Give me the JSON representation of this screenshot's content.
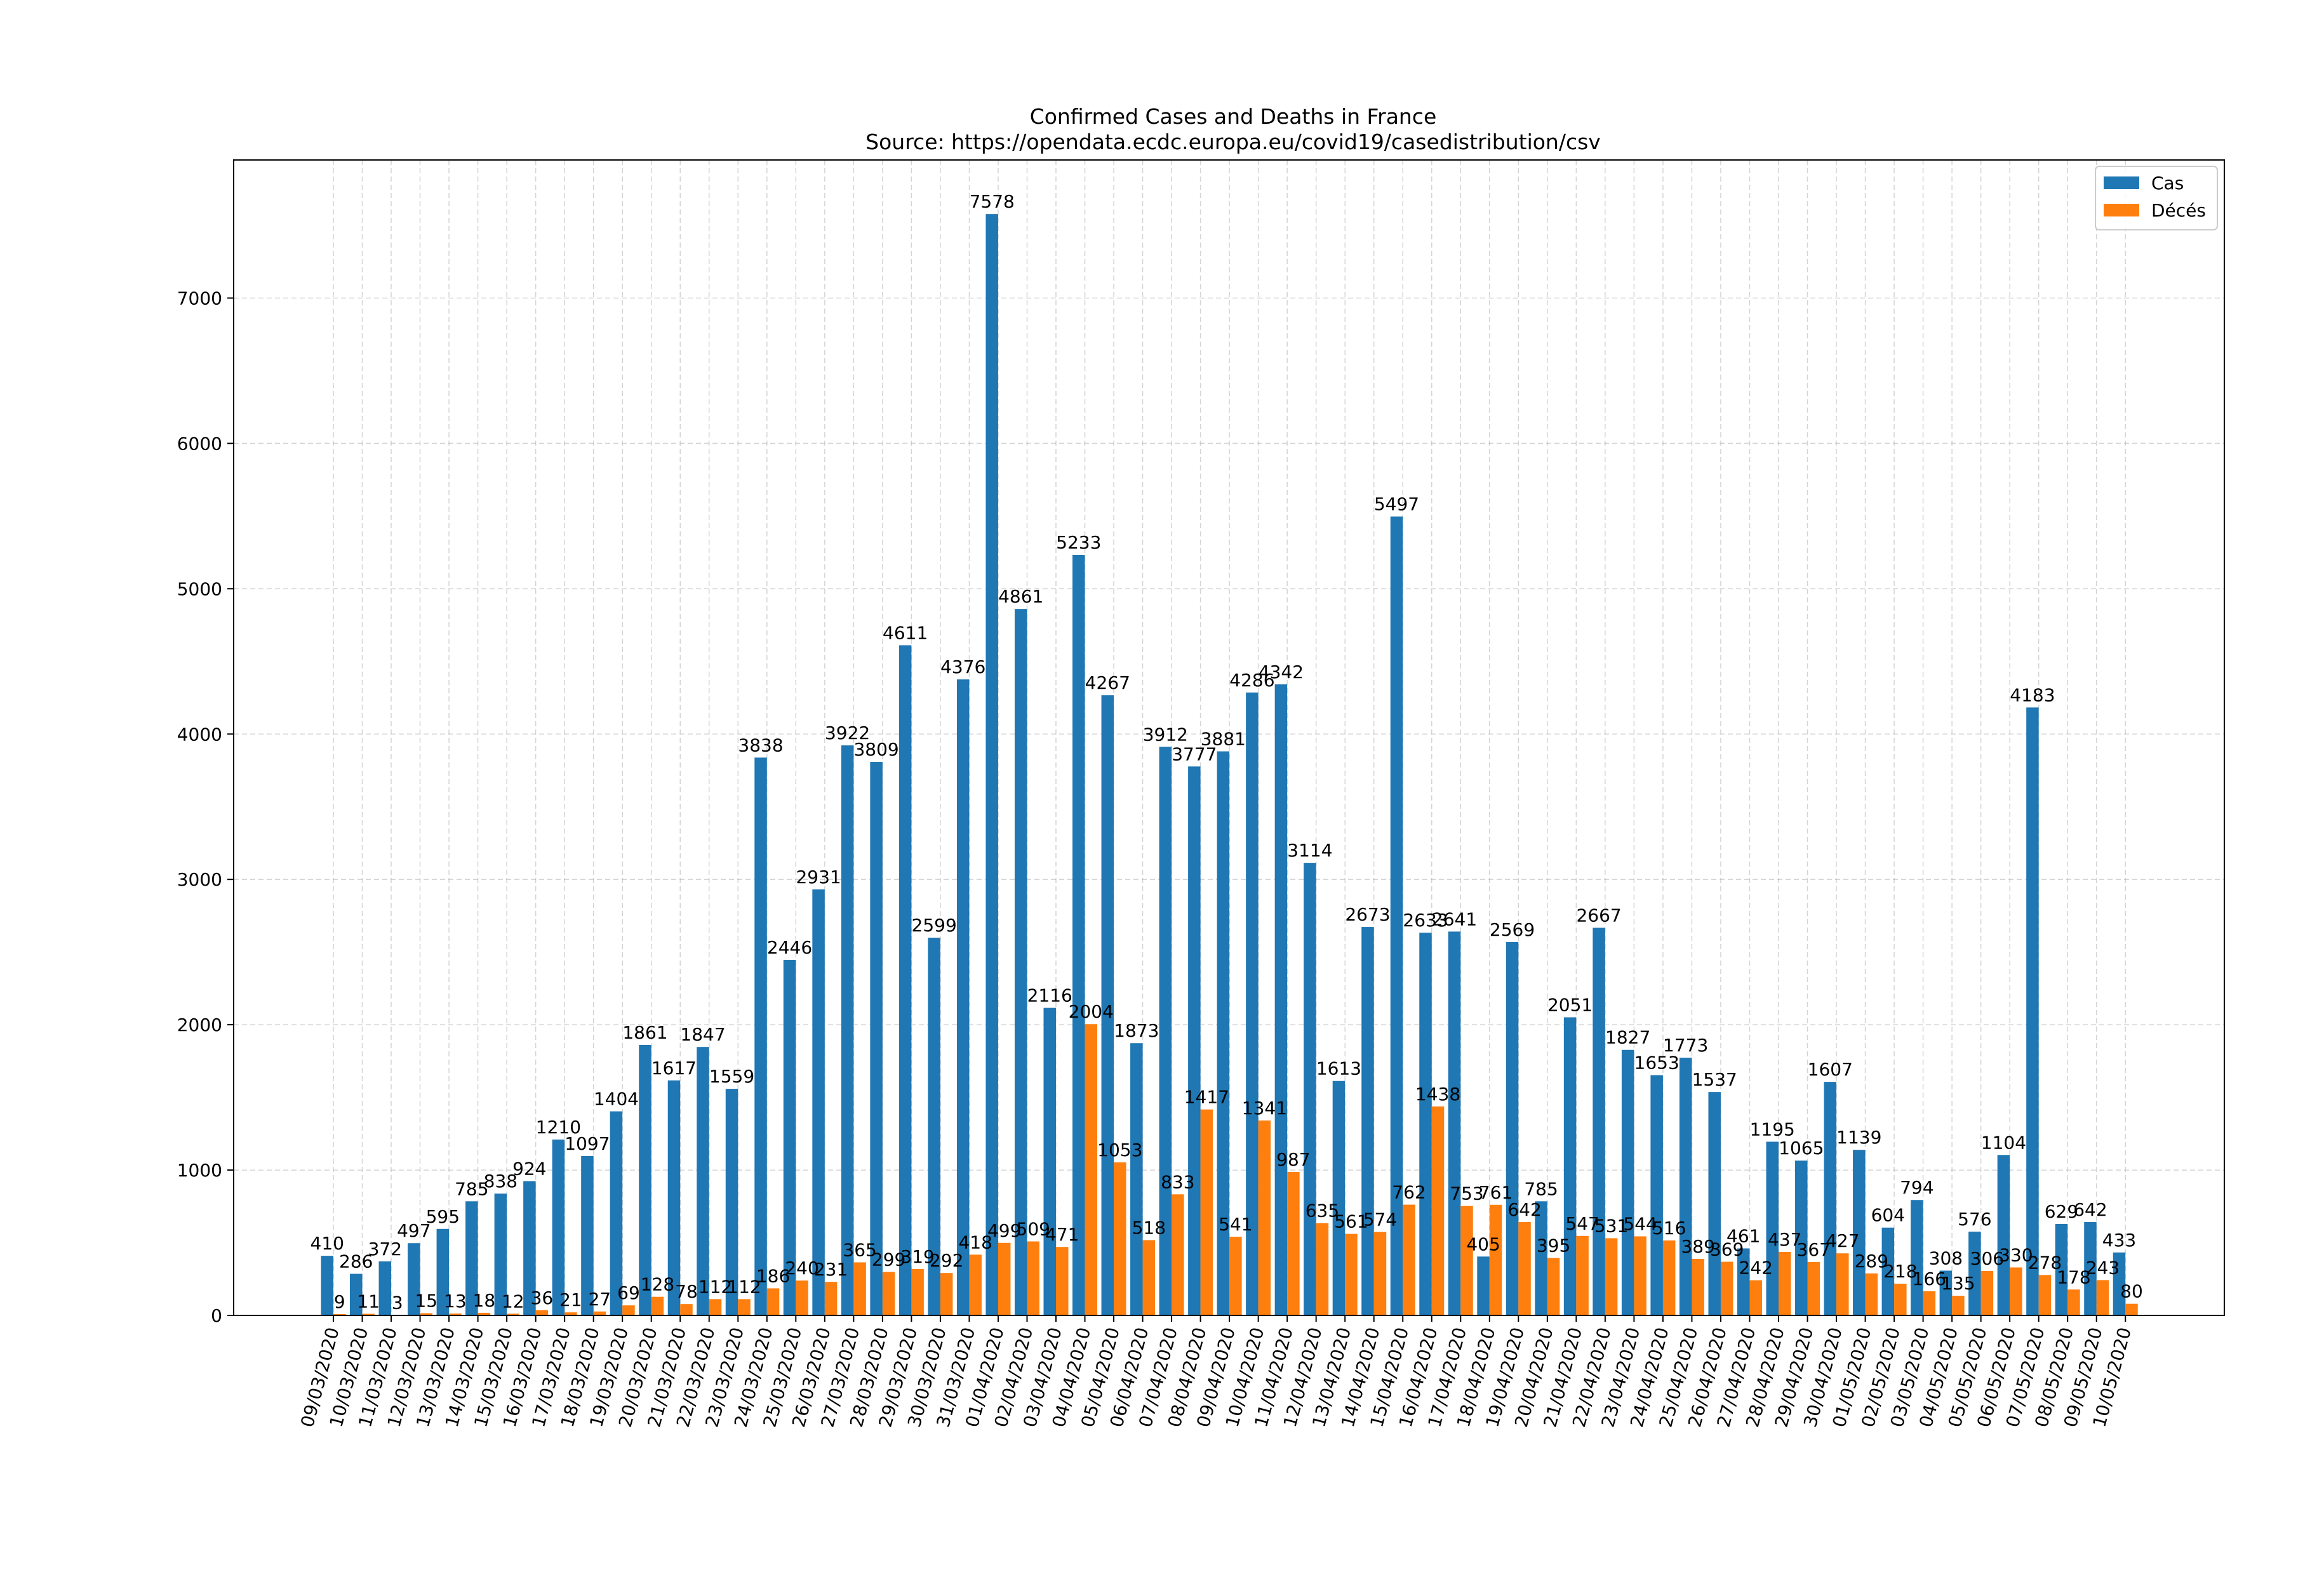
{
  "chart_data": {
    "type": "bar",
    "title": "Confirmed Cases and Deaths in France",
    "subtitle": "Source: https://opendata.ecdc.europa.eu/covid19/casedistribution/csv",
    "xlabel": "",
    "ylabel": "",
    "ylim": [
      0,
      7950
    ],
    "yticks": [
      0,
      1000,
      2000,
      3000,
      4000,
      5000,
      6000,
      7000
    ],
    "grid": true,
    "legend_position": "top-right",
    "categories": [
      "09/03/2020",
      "10/03/2020",
      "11/03/2020",
      "12/03/2020",
      "13/03/2020",
      "14/03/2020",
      "15/03/2020",
      "16/03/2020",
      "17/03/2020",
      "18/03/2020",
      "19/03/2020",
      "20/03/2020",
      "21/03/2020",
      "22/03/2020",
      "23/03/2020",
      "24/03/2020",
      "25/03/2020",
      "26/03/2020",
      "27/03/2020",
      "28/03/2020",
      "29/03/2020",
      "30/03/2020",
      "31/03/2020",
      "01/04/2020",
      "02/04/2020",
      "03/04/2020",
      "04/04/2020",
      "05/04/2020",
      "06/04/2020",
      "07/04/2020",
      "08/04/2020",
      "09/04/2020",
      "10/04/2020",
      "11/04/2020",
      "12/04/2020",
      "13/04/2020",
      "14/04/2020",
      "15/04/2020",
      "16/04/2020",
      "17/04/2020",
      "18/04/2020",
      "19/04/2020",
      "20/04/2020",
      "21/04/2020",
      "22/04/2020",
      "23/04/2020",
      "24/04/2020",
      "25/04/2020",
      "26/04/2020",
      "27/04/2020",
      "28/04/2020",
      "29/04/2020",
      "30/04/2020",
      "01/05/2020",
      "02/05/2020",
      "03/05/2020",
      "04/05/2020",
      "05/05/2020",
      "06/05/2020",
      "07/05/2020",
      "08/05/2020",
      "09/05/2020",
      "10/05/2020"
    ],
    "series": [
      {
        "name": "Cas",
        "color": "#1f77b4",
        "values": [
          410,
          286,
          372,
          497,
          595,
          785,
          838,
          924,
          1210,
          1097,
          1404,
          1861,
          1617,
          1847,
          1559,
          3838,
          2446,
          2931,
          3922,
          3809,
          4611,
          2599,
          4376,
          7578,
          4861,
          2116,
          5233,
          4267,
          1873,
          3912,
          3777,
          3881,
          4286,
          4342,
          3114,
          1613,
          2673,
          5497,
          2633,
          2641,
          405,
          2569,
          785,
          2051,
          2667,
          1827,
          1653,
          1773,
          1537,
          461,
          1195,
          1065,
          1607,
          1139,
          604,
          794,
          308,
          576,
          1104,
          4183,
          629,
          642,
          433
        ]
      },
      {
        "name": "Décés",
        "color": "#ff7f0e",
        "values": [
          9,
          11,
          3,
          15,
          13,
          18,
          12,
          36,
          21,
          27,
          69,
          128,
          78,
          112,
          112,
          186,
          240,
          231,
          365,
          299,
          319,
          292,
          418,
          499,
          509,
          471,
          2004,
          1053,
          518,
          833,
          1417,
          541,
          1341,
          987,
          635,
          561,
          574,
          762,
          1438,
          753,
          761,
          642,
          395,
          547,
          531,
          544,
          516,
          389,
          369,
          242,
          437,
          367,
          427,
          289,
          218,
          166,
          135,
          306,
          330,
          278,
          178,
          243,
          80
        ]
      }
    ]
  }
}
